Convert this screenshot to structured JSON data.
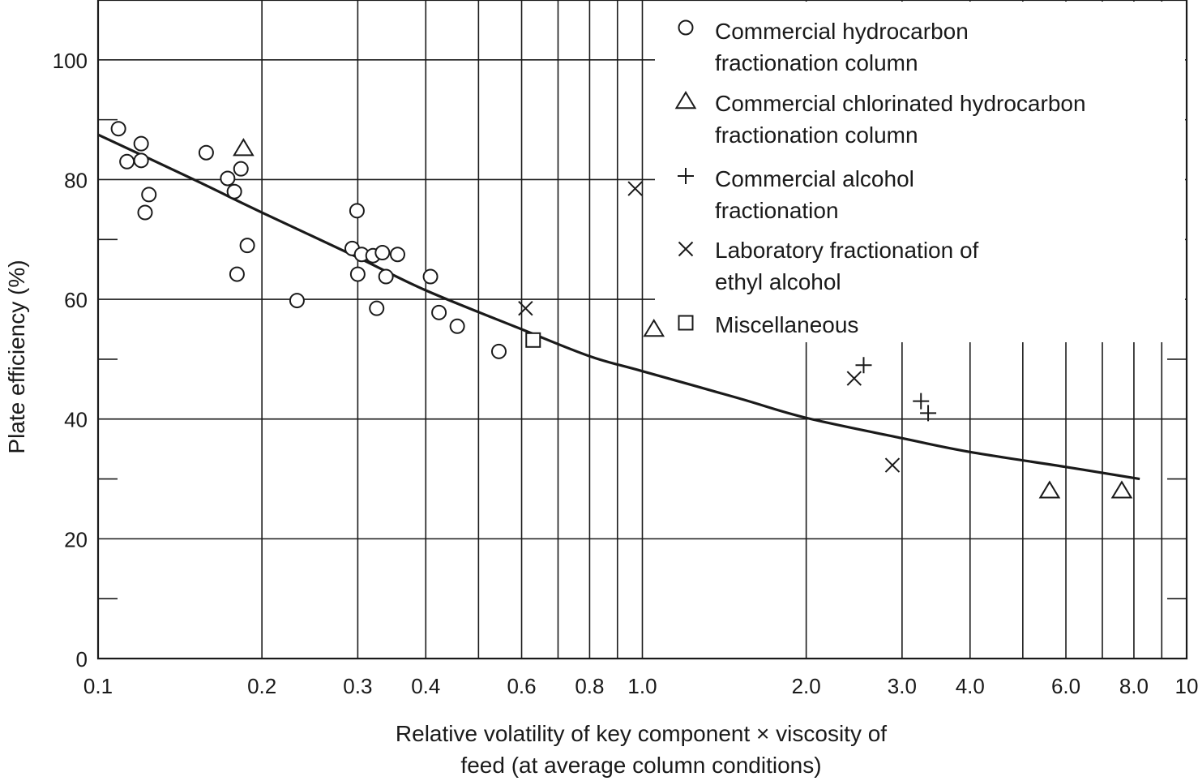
{
  "chart_data": {
    "type": "scatter",
    "xscale": "log",
    "xlim": [
      0.1,
      10
    ],
    "ylim": [
      0,
      110
    ],
    "grid": true,
    "legend_position": "top-right",
    "xlabel_lines": [
      "Relative volatility of key component × viscosity of",
      "feed (at average column conditions)"
    ],
    "ylabel": "Plate efficiency (%)",
    "x_ticks": [
      {
        "value": 0.1,
        "label": "0.1"
      },
      {
        "value": 0.2,
        "label": "0.2"
      },
      {
        "value": 0.3,
        "label": "0.3"
      },
      {
        "value": 0.4,
        "label": "0.4"
      },
      {
        "value": 0.6,
        "label": "0.6"
      },
      {
        "value": 0.8,
        "label": "0.8"
      },
      {
        "value": 1.0,
        "label": "1.0"
      },
      {
        "value": 2.0,
        "label": "2.0"
      },
      {
        "value": 3.0,
        "label": "3.0"
      },
      {
        "value": 4.0,
        "label": "4.0"
      },
      {
        "value": 6.0,
        "label": "6.0"
      },
      {
        "value": 8.0,
        "label": "8.0"
      },
      {
        "value": 10,
        "label": "10"
      }
    ],
    "x_gridlines": [
      0.2,
      0.3,
      0.4,
      0.5,
      0.6,
      0.7,
      0.8,
      0.9,
      1.0,
      2.0,
      3.0,
      4.0,
      5.0,
      6.0,
      7.0,
      8.0,
      9.0
    ],
    "y_ticks": [
      {
        "value": 0,
        "label": "0"
      },
      {
        "value": 20,
        "label": "20"
      },
      {
        "value": 40,
        "label": "40"
      },
      {
        "value": 60,
        "label": "60"
      },
      {
        "value": 80,
        "label": "80"
      },
      {
        "value": 100,
        "label": "100"
      }
    ],
    "y_gridlines": [
      20,
      40,
      60,
      80,
      100
    ],
    "y_minor_ticks": [
      10,
      30,
      50,
      70,
      90
    ],
    "legend": [
      {
        "marker": "circle",
        "lines": [
          "Commercial hydrocarbon",
          "fractionation column"
        ]
      },
      {
        "marker": "triangle",
        "lines": [
          "Commercial chlorinated hydrocarbon",
          "fractionation column"
        ]
      },
      {
        "marker": "plus",
        "lines": [
          "Commercial alcohol",
          "fractionation"
        ]
      },
      {
        "marker": "x",
        "lines": [
          "Laboratory fractionation of",
          "ethyl alcohol"
        ]
      },
      {
        "marker": "square",
        "lines": [
          "Miscellaneous"
        ]
      }
    ],
    "series": [
      {
        "marker": "circle",
        "points": [
          [
            0.109,
            88.5
          ],
          [
            0.113,
            83
          ],
          [
            0.12,
            86
          ],
          [
            0.12,
            83.2
          ],
          [
            0.122,
            74.5
          ],
          [
            0.124,
            77.5
          ],
          [
            0.158,
            84.5
          ],
          [
            0.173,
            80.2
          ],
          [
            0.178,
            78
          ],
          [
            0.18,
            64.2
          ],
          [
            0.183,
            81.8
          ],
          [
            0.188,
            69
          ],
          [
            0.232,
            59.8
          ],
          [
            0.293,
            68.5
          ],
          [
            0.299,
            74.8
          ],
          [
            0.3,
            64.2
          ],
          [
            0.305,
            67.5
          ],
          [
            0.32,
            67.3
          ],
          [
            0.325,
            58.5
          ],
          [
            0.333,
            67.8
          ],
          [
            0.338,
            63.8
          ],
          [
            0.355,
            67.5
          ],
          [
            0.408,
            63.8
          ],
          [
            0.423,
            57.8
          ],
          [
            0.457,
            55.5
          ],
          [
            0.545,
            51.3
          ]
        ]
      },
      {
        "marker": "triangle",
        "points": [
          [
            0.185,
            85.2
          ],
          [
            1.05,
            55
          ],
          [
            5.6,
            28
          ],
          [
            7.6,
            28
          ]
        ]
      },
      {
        "marker": "plus",
        "points": [
          [
            2.55,
            49
          ],
          [
            3.25,
            43
          ],
          [
            3.35,
            41
          ]
        ]
      },
      {
        "marker": "x",
        "points": [
          [
            0.61,
            58.5
          ],
          [
            0.97,
            78.5
          ],
          [
            2.45,
            46.8
          ],
          [
            2.88,
            32.3
          ]
        ]
      },
      {
        "marker": "square",
        "points": [
          [
            0.63,
            53.2
          ]
        ]
      }
    ],
    "fit_curve": {
      "style": "solid",
      "points": [
        [
          0.1,
          87.5
        ],
        [
          0.15,
          80
        ],
        [
          0.2,
          74.5
        ],
        [
          0.3,
          67
        ],
        [
          0.4,
          61.5
        ],
        [
          0.6,
          55
        ],
        [
          0.8,
          50.5
        ],
        [
          1.0,
          48
        ],
        [
          1.5,
          43.5
        ],
        [
          2.0,
          40.2
        ],
        [
          3.0,
          36.8
        ],
        [
          4.0,
          34.5
        ],
        [
          6.0,
          32
        ],
        [
          8.2,
          30
        ]
      ]
    }
  }
}
